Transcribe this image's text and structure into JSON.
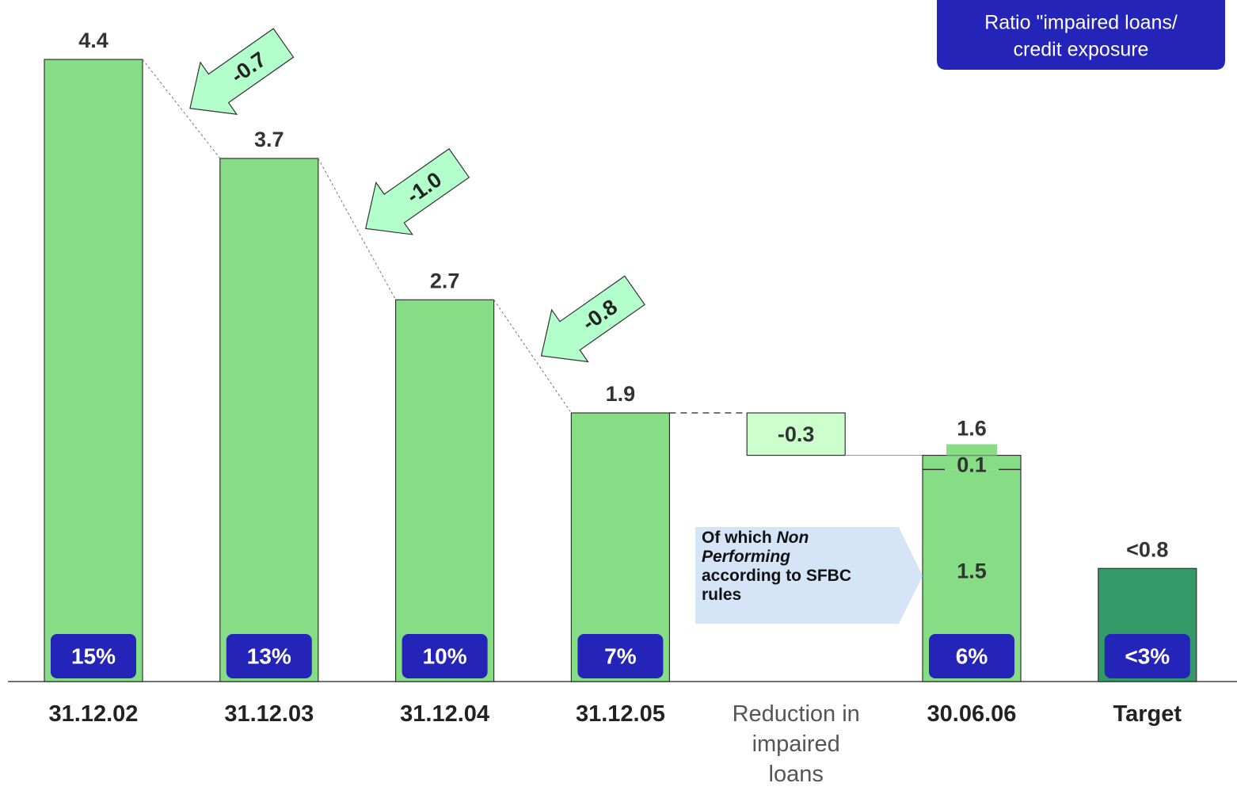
{
  "chart_data": {
    "type": "waterfall",
    "categories": [
      "31.12.02",
      "31.12.03",
      "31.12.04",
      "31.12.05",
      "Reduction in impaired loans",
      "30.06.06",
      "Target"
    ],
    "values": [
      4.4,
      3.7,
      2.7,
      1.9,
      -0.3,
      1.6,
      0.8
    ],
    "value_labels": [
      "4.4",
      "3.7",
      "2.7",
      "1.9",
      "-0.3",
      "1.6",
      "<0.8"
    ],
    "breakdown": {
      "values": [
        1.5,
        0.1
      ]
    },
    "ratios": {
      "values": [
        15,
        13,
        10,
        7,
        null,
        6,
        3
      ],
      "value_labels": [
        "15%",
        "13%",
        "10%",
        "7%",
        null,
        "6%",
        "<3%"
      ]
    },
    "changes": {
      "values": [
        -0.7,
        -1,
        -0.8
      ],
      "value_labels": [
        "-0.7",
        "-1.0",
        "-0.8"
      ]
    },
    "legend": {
      "lines": [
        "Ratio \"impaired loans/",
        "credit exposure"
      ]
    },
    "annotation": {
      "parts": [
        "Of which ",
        "Non Performing",
        " according to SFBC rules"
      ]
    },
    "colors": {
      "bar": "#86dd86",
      "target": "#339966",
      "reduction": "#ccffcc",
      "arrow": "#b3ffcc",
      "ratio": "#2424b8",
      "annotation": "#d6e4f8"
    }
  }
}
